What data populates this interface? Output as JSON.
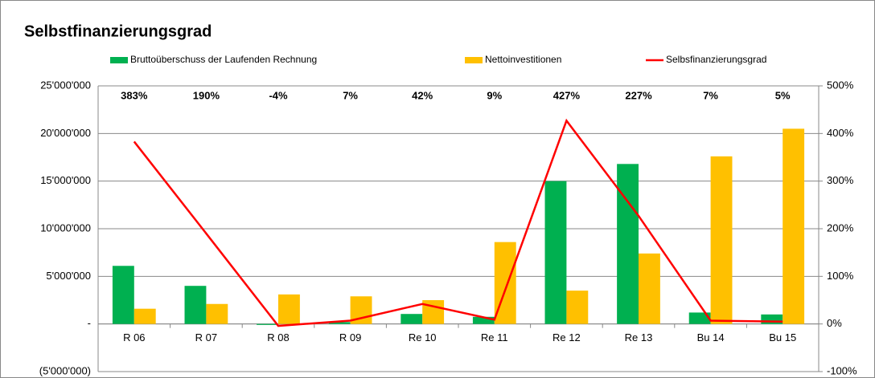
{
  "chart_data": {
    "type": "bar_line",
    "title": "Selbstfinanzierungsgrad",
    "categories": [
      "R 06",
      "R 07",
      "R 08",
      "R 09",
      "Re 10",
      "Re 11",
      "Re 12",
      "Re 13",
      "Bu 14",
      "Bu 15"
    ],
    "series": [
      {
        "name": "Bruttoüberschuss der Laufenden Rechnung",
        "color": "#00b050",
        "type": "bar",
        "values": [
          6100000,
          4000000,
          -100000,
          200000,
          1050000,
          750000,
          15000000,
          16800000,
          1200000,
          1000000
        ]
      },
      {
        "name": "Nettoinvestitionen",
        "color": "#ffc000",
        "type": "bar",
        "values": [
          1600000,
          2100000,
          3100000,
          2900000,
          2500000,
          8600000,
          3500000,
          7400000,
          17600000,
          20500000
        ]
      },
      {
        "name": "Selbsfinanzierungsgrad",
        "color": "#ff0000",
        "type": "line",
        "axis": "y2",
        "values": [
          383,
          190,
          -4,
          7,
          42,
          9,
          427,
          227,
          7,
          5
        ],
        "value_labels": [
          "383%",
          "190%",
          "-4%",
          "7%",
          "42%",
          "9%",
          "427%",
          "227%",
          "7%",
          "5%"
        ]
      }
    ],
    "ylim": [
      -5000000,
      25000000
    ],
    "yticks": [
      {
        "value": -5000000,
        "label": "(5'000'000)"
      },
      {
        "value": 0,
        "label": "-"
      },
      {
        "value": 5000000,
        "label": "5'000'000"
      },
      {
        "value": 10000000,
        "label": "10'000'000"
      },
      {
        "value": 15000000,
        "label": "15'000'000"
      },
      {
        "value": 20000000,
        "label": "20'000'000"
      },
      {
        "value": 25000000,
        "label": "25'000'000"
      }
    ],
    "y2lim": [
      -100,
      500
    ],
    "y2ticks": [
      {
        "value": -100,
        "label": "-100%"
      },
      {
        "value": 0,
        "label": "0%"
      },
      {
        "value": 100,
        "label": "100%"
      },
      {
        "value": 200,
        "label": "200%"
      },
      {
        "value": 300,
        "label": "300%"
      },
      {
        "value": 400,
        "label": "400%"
      },
      {
        "value": 500,
        "label": "500%"
      }
    ],
    "grid": true
  }
}
